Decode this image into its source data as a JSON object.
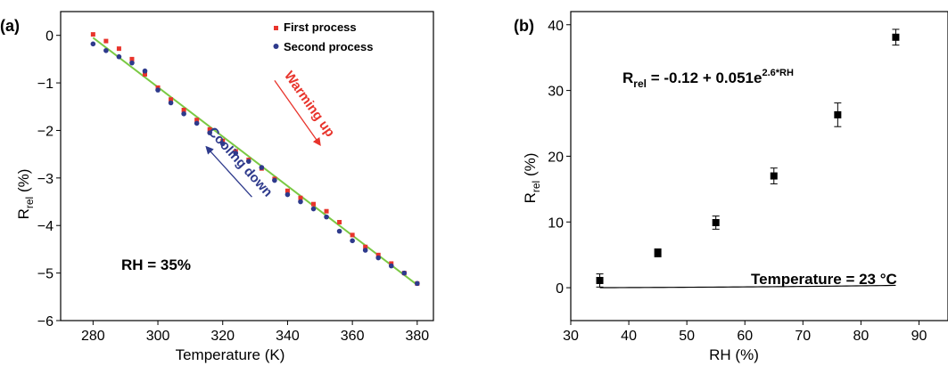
{
  "chart_data": [
    {
      "panel_label": "(a)",
      "type": "scatter",
      "xlabel": "Temperature (K)",
      "ylabel_main": "R",
      "ylabel_sub": "rel",
      "ylabel_unit": " (%)",
      "xlim": [
        270,
        385
      ],
      "ylim": [
        -6,
        0.5
      ],
      "xticks": [
        280,
        300,
        320,
        340,
        360,
        380
      ],
      "yticks": [
        -6,
        -5,
        -4,
        -3,
        -2,
        -1,
        0
      ],
      "xtick_labels": [
        "280",
        "300",
        "320",
        "340",
        "360",
        "380"
      ],
      "ytick_labels": [
        "−6",
        "−5",
        "−4",
        "−3",
        "−2",
        "−1",
        "0"
      ],
      "legend_position": "top-right",
      "series": [
        {
          "name": "First process",
          "color": "#e8342c",
          "marker": "square",
          "x": [
            280,
            284,
            288,
            292,
            296,
            300,
            304,
            308,
            312,
            316,
            320,
            324,
            328,
            332,
            336,
            340,
            344,
            348,
            352,
            356,
            360,
            364,
            368,
            372,
            376,
            380
          ],
          "y": [
            0.02,
            -0.12,
            -0.28,
            -0.5,
            -0.82,
            -1.1,
            -1.35,
            -1.57,
            -1.78,
            -1.98,
            -2.22,
            -2.44,
            -2.62,
            -2.8,
            -3.02,
            -3.27,
            -3.42,
            -3.55,
            -3.7,
            -3.93,
            -4.2,
            -4.45,
            -4.62,
            -4.8,
            -5.0,
            -5.22
          ]
        },
        {
          "name": "Second process",
          "color": "#2e3a8c",
          "marker": "circle",
          "x": [
            280,
            284,
            288,
            292,
            296,
            300,
            304,
            308,
            312,
            316,
            320,
            324,
            328,
            332,
            336,
            340,
            344,
            348,
            352,
            356,
            360,
            364,
            368,
            372,
            376,
            380
          ],
          "y": [
            -0.18,
            -0.32,
            -0.45,
            -0.58,
            -0.75,
            -1.15,
            -1.42,
            -1.65,
            -1.85,
            -2.05,
            -2.28,
            -2.48,
            -2.65,
            -2.78,
            -3.05,
            -3.35,
            -3.5,
            -3.65,
            -3.82,
            -4.12,
            -4.32,
            -4.52,
            -4.68,
            -4.85,
            -5.0,
            -5.22
          ]
        }
      ],
      "fit_line": {
        "color": "#7ac943",
        "x": [
          280,
          380
        ],
        "y": [
          -0.05,
          -5.25
        ]
      },
      "arrows": [
        {
          "label": "Warming up",
          "color": "#e8342c",
          "from": [
            336,
            -0.95
          ],
          "to": [
            350,
            -2.3
          ]
        },
        {
          "label": "Cooling down",
          "color": "#2e3a8c",
          "from": [
            329,
            -3.4
          ],
          "to": [
            315,
            -2.35
          ]
        }
      ],
      "annotation": "RH = 35%"
    },
    {
      "panel_label": "(b)",
      "type": "scatter",
      "xlabel": "RH (%)",
      "ylabel_main": "R",
      "ylabel_sub": "rel",
      "ylabel_unit": " (%)",
      "xlim": [
        30,
        95
      ],
      "ylim": [
        -5,
        42
      ],
      "xticks": [
        30,
        40,
        50,
        60,
        70,
        80,
        90
      ],
      "yticks": [
        0,
        10,
        20,
        30,
        40
      ],
      "xtick_labels": [
        "30",
        "40",
        "50",
        "60",
        "70",
        "80",
        "90"
      ],
      "ytick_labels": [
        "0",
        "10",
        "20",
        "30",
        "40"
      ],
      "series": [
        {
          "color": "#000000",
          "marker": "square",
          "x": [
            35,
            45,
            55,
            65,
            76,
            86
          ],
          "y": [
            1.1,
            5.3,
            9.9,
            17.0,
            26.3,
            38.1
          ],
          "yerr": [
            1.0,
            0.6,
            1.0,
            1.2,
            1.8,
            1.2
          ]
        }
      ],
      "fit": {
        "a": -0.12,
        "b": 0.051,
        "c": 2.6
      },
      "equation": {
        "lhs_main": "R",
        "lhs_sub": "rel",
        "rhs": " = -0.12 + 0.051e",
        "rhs_sup": "2.6*RH"
      },
      "annotation": "Temperature = 23 °C"
    }
  ]
}
